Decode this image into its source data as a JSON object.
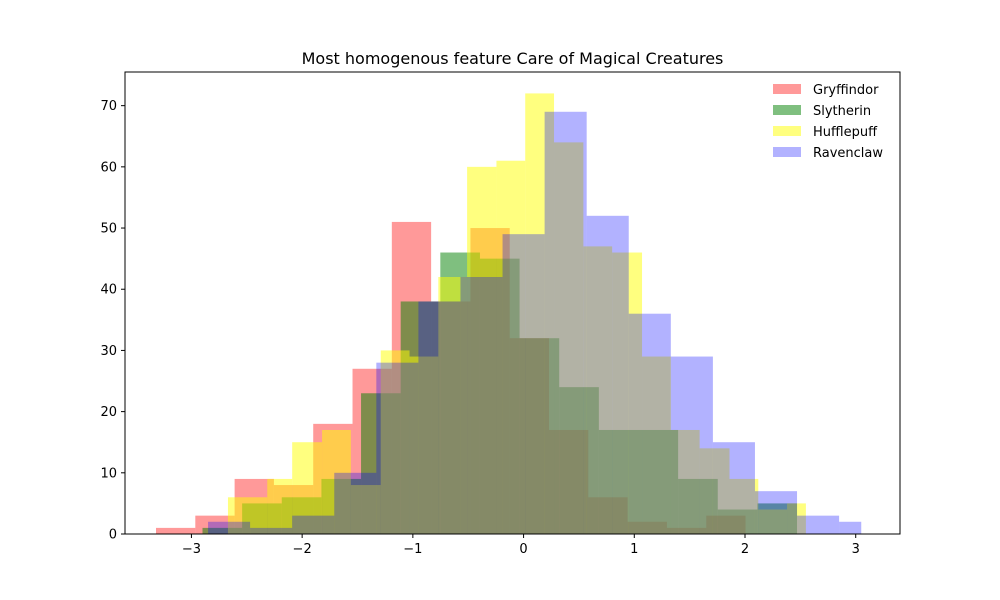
{
  "chart_data": {
    "type": "bar",
    "title": "Most homogenous feature Care of Magical Creatures",
    "xlabel": "",
    "ylabel": "",
    "xlim": [
      -3.6,
      3.4
    ],
    "ylim": [
      0,
      75.5
    ],
    "xticks": [
      -3,
      -2,
      -1,
      0,
      1,
      2,
      3
    ],
    "yticks": [
      0,
      10,
      20,
      30,
      40,
      50,
      60,
      70
    ],
    "grid": false,
    "legend_position": "top-right",
    "series": [
      {
        "name": "Gryffindor",
        "color": "#ff0000",
        "opacity": 0.4,
        "bins": [
          -3.32,
          -2.965,
          -2.61,
          -2.255,
          -1.9,
          -1.545,
          -1.19,
          -0.835,
          -0.48,
          -0.125,
          0.23,
          0.585,
          0.94,
          1.295,
          1.65,
          2.005,
          2.36
        ],
        "values": [
          1,
          3,
          9,
          8,
          18,
          27,
          51,
          38,
          50,
          32,
          17,
          6,
          2,
          1,
          3,
          0
        ]
      },
      {
        "name": "Slytherin",
        "color": "#008000",
        "opacity": 0.5,
        "bins": [
          -2.9,
          -2.542,
          -2.184,
          -1.826,
          -1.468,
          -1.11,
          -0.752,
          -0.394,
          -0.036,
          0.322,
          0.68,
          1.038,
          1.396,
          1.754,
          2.112,
          2.47
        ],
        "values": [
          1,
          5,
          6,
          9,
          23,
          38,
          46,
          45,
          32,
          24,
          17,
          17,
          9,
          4,
          5
        ]
      },
      {
        "name": "Hufflepuff",
        "color": "#ffff00",
        "opacity": 0.5,
        "bins": [
          -2.67,
          -2.315,
          -2.09,
          -1.82,
          -1.56,
          -1.29,
          -1.03,
          -0.77,
          -0.51,
          -0.245,
          0.015,
          0.275,
          0.54,
          0.8,
          1.07,
          1.33,
          1.59,
          1.86,
          2.12,
          2.38,
          2.55
        ],
        "values": [
          6,
          9,
          15,
          17,
          8,
          30,
          29,
          42,
          60,
          61,
          72,
          64,
          47,
          46,
          29,
          17,
          14,
          9,
          4,
          5
        ]
      },
      {
        "name": "Ravenclaw",
        "color": "#0000ff",
        "opacity": 0.3,
        "bins": [
          -2.85,
          -2.47,
          -2.09,
          -1.71,
          -1.33,
          -0.95,
          -0.57,
          -0.19,
          0.19,
          0.57,
          0.95,
          1.33,
          1.71,
          2.09,
          2.47,
          2.85,
          3.05
        ],
        "values": [
          2,
          1,
          3,
          10,
          28,
          38,
          42,
          49,
          69,
          52,
          36,
          29,
          15,
          7,
          3,
          2
        ]
      }
    ]
  }
}
